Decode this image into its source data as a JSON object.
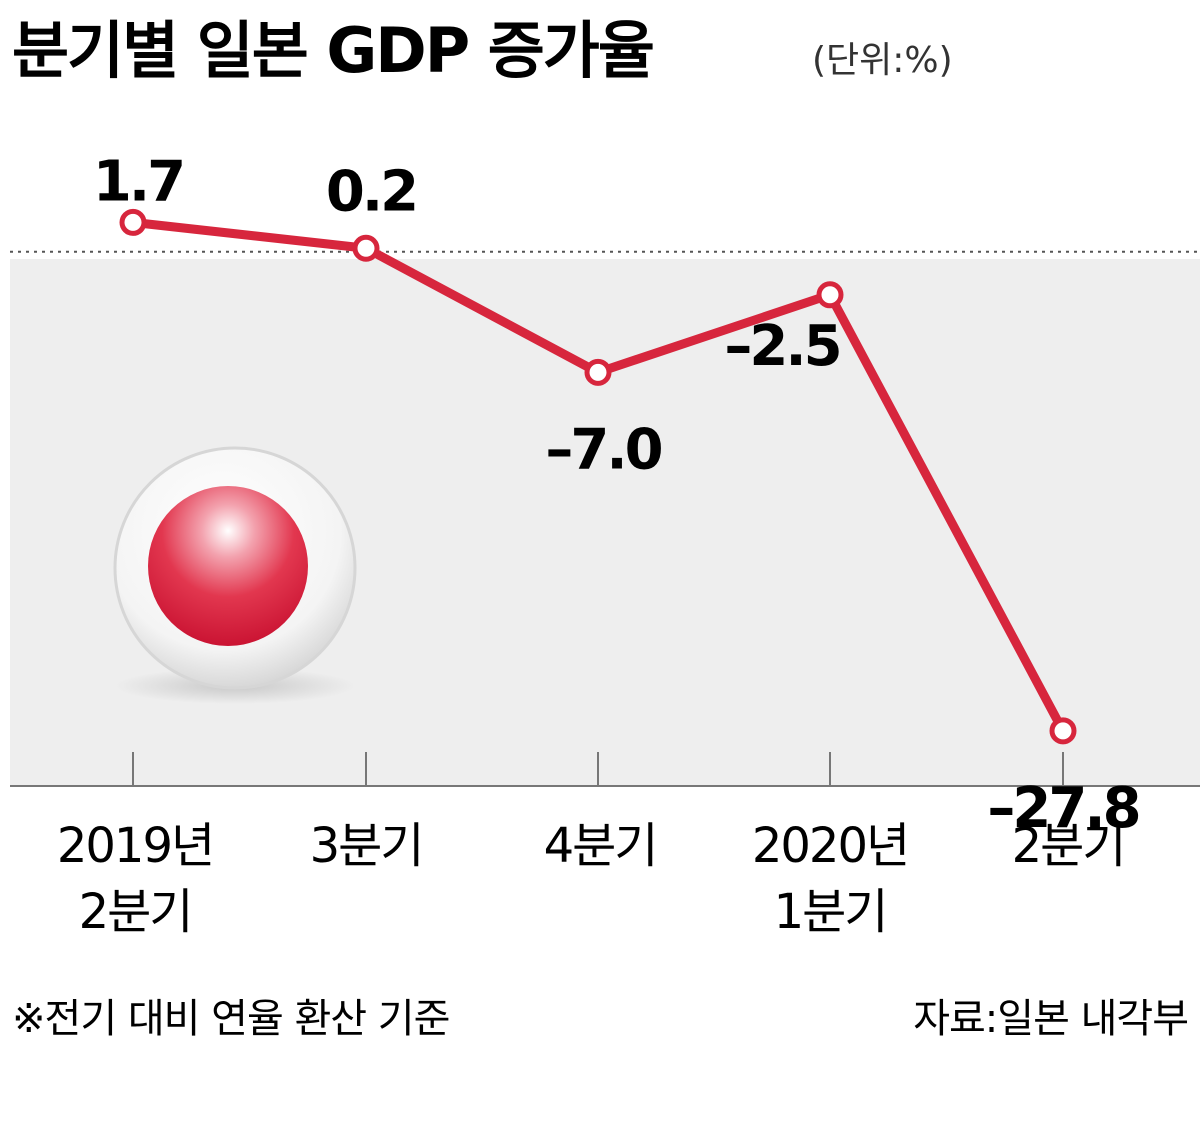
{
  "chart_data": {
    "type": "line",
    "title": "분기별 일본 GDP 증가율",
    "subtitle": "(단위:%)",
    "categories": [
      [
        "2019년",
        "2분기"
      ],
      [
        "3분기"
      ],
      [
        "4분기"
      ],
      [
        "2020년",
        "1분기"
      ],
      [
        "2분기"
      ]
    ],
    "series": [
      {
        "values": [
          1.7,
          0.2,
          -7.0,
          -2.5,
          -27.8
        ],
        "color": "#d7263d"
      }
    ],
    "data_labels": [
      "1.7",
      "0.2",
      "-7.0",
      "-2.5",
      "-27.8"
    ],
    "ylim": [
      -31,
      3
    ],
    "baseline": 0,
    "grid": false,
    "note": "※전기 대비 연율 환산 기준",
    "source": "자료:일본 내각부",
    "decoration": "japan-flag-icon"
  }
}
